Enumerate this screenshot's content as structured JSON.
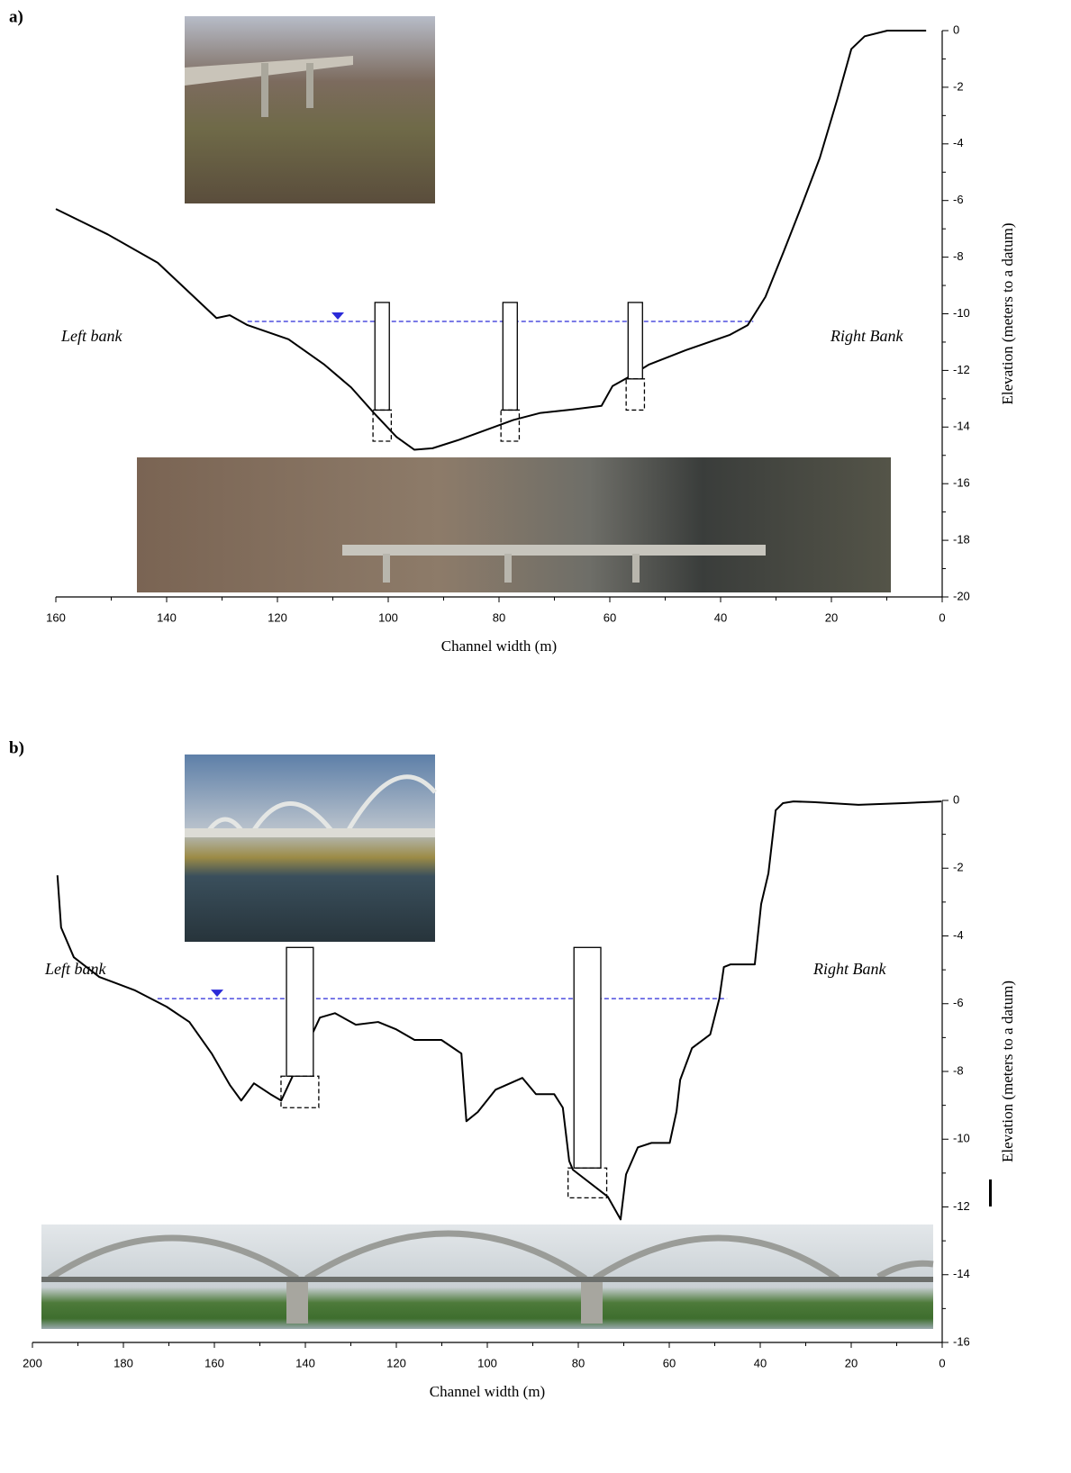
{
  "charts": [
    {
      "type": "line",
      "label": "a)",
      "x_label": "Channel width (m)",
      "y_label": "Elevation (meters to a datum)",
      "annotations": [
        "Left bank",
        "Right Bank"
      ],
      "xlim": [
        160,
        0
      ],
      "xticks": [
        160,
        140,
        120,
        100,
        80,
        60,
        40,
        20,
        0
      ],
      "ylim": [
        -20,
        0
      ],
      "yticks": [
        0,
        -2,
        -4,
        -6,
        -8,
        -10,
        -12,
        -14,
        -16,
        -18,
        -20
      ],
      "x": [
        160,
        150.6,
        141.6,
        135.9,
        131,
        128.6,
        125.4,
        118,
        111.5,
        106.7,
        102.6,
        98.5,
        95.3,
        92,
        87.2,
        82.3,
        77.4,
        72.5,
        67.6,
        61.5,
        59.5,
        56.3,
        53,
        46.5,
        38.4,
        35.1,
        31.9,
        28.6,
        25.4,
        22.1,
        18.9,
        16.4,
        14,
        9.9,
        2.9
      ],
      "series": [
        {
          "color": "#000000",
          "values": [
            -6.3,
            -7.2,
            -8.2,
            -9.25,
            -10.15,
            -10.05,
            -10.4,
            -10.9,
            -11.8,
            -12.6,
            -13.5,
            -14.35,
            -14.8,
            -14.75,
            -14.45,
            -14.1,
            -13.75,
            -13.5,
            -13.4,
            -13.25,
            -12.55,
            -12.2,
            -11.8,
            -11.3,
            -10.75,
            -10.4,
            -9.4,
            -7.8,
            -6.2,
            -4.5,
            -2.4,
            -0.65,
            -0.2,
            0,
            0
          ]
        }
      ],
      "piers": [
        {
          "x": 101.1,
          "width": 2.6,
          "top": -9.6,
          "bottom": -13.4,
          "footing_width": 3.3,
          "footing_bottom": -14.5
        },
        {
          "x": 78,
          "width": 2.6,
          "top": -9.6,
          "bottom": -13.4,
          "footing_width": 3.3,
          "footing_bottom": -14.5
        },
        {
          "x": 55.4,
          "width": 2.6,
          "top": -9.6,
          "bottom": -12.3,
          "footing_width": 3.3,
          "footing_bottom": -13.4
        }
      ],
      "water_level": {
        "elevation": -10.27,
        "x_from": 125.4,
        "x_to": 34.1,
        "marker_x": 109.1,
        "color": "#2a2ad8"
      }
    },
    {
      "type": "line",
      "label": "b)",
      "x_label": "Channel width (m)",
      "y_label": "Elevation (meters to a datum)",
      "annotations": [
        "Left bank",
        "Right Bank"
      ],
      "xlim": [
        200,
        0
      ],
      "xticks": [
        200,
        180,
        160,
        140,
        120,
        100,
        80,
        60,
        40,
        20,
        0
      ],
      "ylim": [
        -16,
        0
      ],
      "yticks": [
        0,
        -2,
        -4,
        -6,
        -8,
        -10,
        -12,
        -14,
        -16
      ],
      "x": [
        194.5,
        193.7,
        190.9,
        185.3,
        177.4,
        170.5,
        165.5,
        160.6,
        156.6,
        154.1,
        151.3,
        147.7,
        145.3,
        136.8,
        133.5,
        128.9,
        124,
        120,
        116,
        110.1,
        105.7,
        104.6,
        102.1,
        98.2,
        92.3,
        89.3,
        85.3,
        83.4,
        82,
        81.2,
        73.5,
        70.7,
        69.5,
        66.9,
        63.9,
        59.9,
        58.4,
        57.6,
        55,
        51,
        49,
        48,
        46.5,
        41.2,
        39.8,
        38.2,
        36.6,
        35,
        32.7,
        28.3,
        18.4,
        8.5,
        0.2
      ],
      "series": [
        {
          "color": "#000000",
          "values": [
            -2.21,
            -3.75,
            -4.63,
            -5.21,
            -5.61,
            -6.09,
            -6.54,
            -7.47,
            -8.4,
            -8.86,
            -8.35,
            -8.67,
            -8.86,
            -6.41,
            -6.28,
            -6.62,
            -6.54,
            -6.76,
            -7.07,
            -7.07,
            -7.47,
            -9.47,
            -9.2,
            -8.54,
            -8.19,
            -8.67,
            -8.67,
            -9.07,
            -10.64,
            -10.9,
            -11.7,
            -12.37,
            -11.04,
            -10.24,
            -10.11,
            -10.11,
            -9.18,
            -8.25,
            -7.31,
            -6.91,
            -5.85,
            -4.92,
            -4.84,
            -4.84,
            -3.06,
            -2.15,
            -0.29,
            -0.08,
            -0.03,
            -0.05,
            -0.13,
            -0.08,
            -0.03
          ]
        }
      ],
      "piers": [
        {
          "x": 141.2,
          "width": 5.9,
          "top": -4.34,
          "bottom": -8.14,
          "footing_width": 8.3,
          "footing_bottom": -9.07
        },
        {
          "x": 78,
          "width": 5.9,
          "top": -4.34,
          "bottom": -10.85,
          "footing_width": 8.5,
          "footing_bottom": -11.73
        }
      ],
      "water_level": {
        "elevation": -5.85,
        "x_from": 172.5,
        "x_to": 47.3,
        "marker_x": 159.4,
        "color": "#2a2ad8"
      }
    }
  ]
}
